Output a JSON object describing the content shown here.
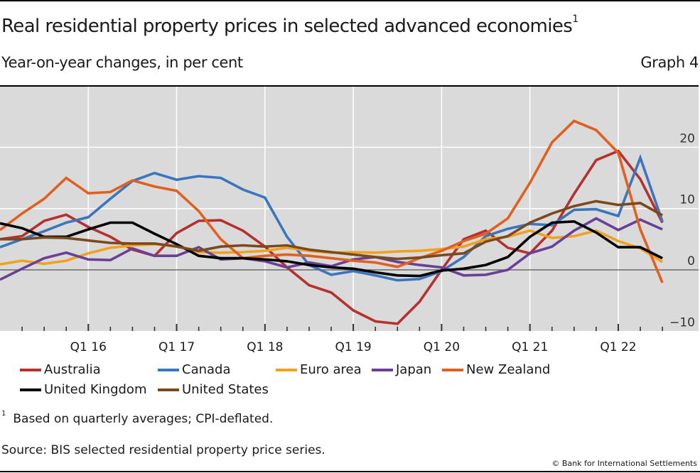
{
  "header": {
    "title": "Real residential property prices in selected advanced economies",
    "title_footnote_mark": "1",
    "subtitle": "Year-on-year changes, in per cent",
    "graph_number": "Graph 4"
  },
  "footer": {
    "footnote_mark": "1",
    "footnote": "Based on quarterly averages; CPI-deflated.",
    "source": "Source: BIS selected residential property price series.",
    "copyright": "© Bank for International Settlements"
  },
  "chart_data": {
    "type": "line",
    "title": "Real residential property prices in selected advanced economies",
    "subtitle": "Year-on-year changes, in per cent",
    "xlabel": "",
    "ylabel": "",
    "x": [
      "Q1 15",
      "Q2 15",
      "Q3 15",
      "Q4 15",
      "Q1 16",
      "Q2 16",
      "Q3 16",
      "Q4 16",
      "Q1 17",
      "Q2 17",
      "Q3 17",
      "Q4 17",
      "Q1 18",
      "Q2 18",
      "Q3 18",
      "Q4 18",
      "Q1 19",
      "Q2 19",
      "Q3 19",
      "Q4 19",
      "Q1 20",
      "Q2 20",
      "Q3 20",
      "Q4 20",
      "Q1 21",
      "Q2 21",
      "Q3 21",
      "Q4 21",
      "Q1 22",
      "Q2 22",
      "Q3 22"
    ],
    "xtick_labels": [
      "Q1 16",
      "Q1 17",
      "Q1 18",
      "Q1 19",
      "Q1 20",
      "Q1 21",
      "Q1 22"
    ],
    "ytick_labels": [
      "20",
      "10",
      "0",
      "−10"
    ],
    "yticks": [
      20,
      10,
      0,
      -10
    ],
    "ylim": [
      -10,
      30
    ],
    "y_axis_side": "right",
    "grid": true,
    "legend_position": "bottom",
    "series": [
      {
        "name": "Australia",
        "color": "#b5302f",
        "values": [
          5.0,
          5.5,
          8.0,
          9.0,
          7.0,
          5.4,
          3.3,
          2.3,
          6.0,
          8.0,
          8.1,
          6.4,
          3.8,
          0.4,
          -2.5,
          -3.7,
          -6.6,
          -8.4,
          -8.8,
          -5.2,
          0.0,
          5.0,
          6.4,
          3.6,
          2.7,
          6.4,
          12.4,
          17.9,
          19.4,
          14.8,
          7.7
        ]
      },
      {
        "name": "Canada",
        "color": "#3a75bd",
        "values": [
          3.7,
          5.0,
          6.3,
          7.7,
          8.6,
          11.6,
          14.5,
          15.8,
          14.7,
          15.3,
          15.0,
          13.1,
          11.8,
          5.4,
          0.8,
          -0.8,
          -0.2,
          -0.9,
          -1.7,
          -1.5,
          -0.2,
          2.1,
          5.5,
          6.7,
          7.5,
          7.3,
          9.8,
          9.9,
          8.8,
          18.3,
          7.9
        ]
      },
      {
        "name": "Euro area",
        "color": "#f0a21f",
        "values": [
          0.9,
          1.5,
          1.0,
          1.5,
          2.7,
          3.6,
          4.0,
          4.2,
          3.9,
          2.9,
          2.8,
          2.9,
          3.1,
          3.6,
          3.1,
          2.8,
          2.9,
          2.8,
          3.0,
          3.1,
          3.4,
          3.8,
          5.0,
          5.4,
          6.4,
          5.2,
          5.5,
          6.4,
          4.7,
          3.5,
          1.3
        ]
      },
      {
        "name": "Japan",
        "color": "#6a3f98",
        "values": [
          -1.6,
          0.2,
          1.9,
          2.8,
          1.7,
          1.6,
          3.5,
          2.3,
          2.3,
          3.7,
          1.7,
          1.9,
          1.4,
          0.4,
          1.2,
          0.6,
          1.7,
          2.1,
          1.3,
          0.8,
          0.4,
          -0.9,
          -0.8,
          0.0,
          2.7,
          3.8,
          6.4,
          8.4,
          6.5,
          8.2,
          6.6
        ]
      },
      {
        "name": "New Zealand",
        "color": "#e0611f",
        "values": [
          6.5,
          9.2,
          11.6,
          15.0,
          12.5,
          12.7,
          14.6,
          13.6,
          12.9,
          9.6,
          5.0,
          1.9,
          2.3,
          2.5,
          2.3,
          1.9,
          1.5,
          1.2,
          0.5,
          1.9,
          3.1,
          4.7,
          5.9,
          8.4,
          14.2,
          20.8,
          24.3,
          22.8,
          19.1,
          6.6,
          -2.1
        ]
      },
      {
        "name": "United Kingdom",
        "color": "#000000",
        "values": [
          7.6,
          6.8,
          5.4,
          5.4,
          6.6,
          7.7,
          7.7,
          5.9,
          4.2,
          2.3,
          1.9,
          1.9,
          1.7,
          1.4,
          0.8,
          0.4,
          0.2,
          -0.4,
          -0.9,
          -1.0,
          -0.1,
          0.2,
          0.8,
          2.1,
          5.4,
          7.7,
          7.9,
          6.1,
          3.7,
          3.7,
          1.9
        ]
      },
      {
        "name": "United States",
        "color": "#7a4a1e",
        "values": [
          5.0,
          5.0,
          5.3,
          5.2,
          4.8,
          4.4,
          4.3,
          4.3,
          3.8,
          3.1,
          3.8,
          4.0,
          3.8,
          4.0,
          3.3,
          2.9,
          2.5,
          2.1,
          1.8,
          2.0,
          2.4,
          2.7,
          4.6,
          5.5,
          7.7,
          9.2,
          10.4,
          11.2,
          10.6,
          10.9,
          8.9
        ]
      }
    ]
  }
}
